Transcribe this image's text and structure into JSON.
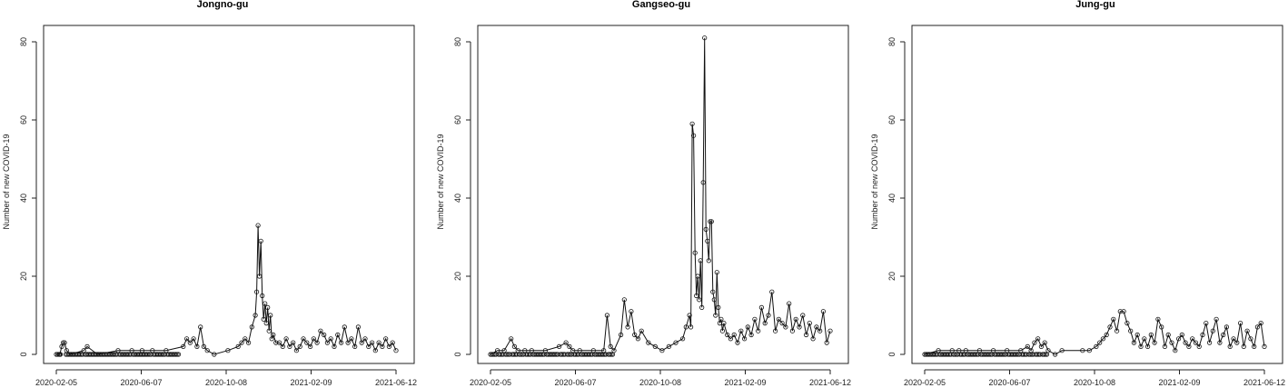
{
  "chart_data": [
    {
      "type": "line",
      "title": "Jongno-gu",
      "ylabel": "Number of new COVID-19",
      "ylim": [
        0,
        80
      ],
      "yticks": [
        0,
        20,
        40,
        60,
        80
      ],
      "xtick_labels": [
        "2020-02-05",
        "2020-06-07",
        "2020-10-08",
        "2021-02-09",
        "2021-06-12"
      ],
      "x_range_days": [
        0,
        495
      ],
      "points": [
        [
          0,
          0
        ],
        [
          5,
          0
        ],
        [
          8,
          2
        ],
        [
          10,
          3
        ],
        [
          12,
          3
        ],
        [
          15,
          1
        ],
        [
          20,
          0
        ],
        [
          40,
          1
        ],
        [
          45,
          2
        ],
        [
          60,
          0
        ],
        [
          90,
          1
        ],
        [
          110,
          1
        ],
        [
          125,
          1
        ],
        [
          140,
          1
        ],
        [
          160,
          1
        ],
        [
          185,
          2
        ],
        [
          190,
          4
        ],
        [
          195,
          3
        ],
        [
          200,
          4
        ],
        [
          205,
          2
        ],
        [
          210,
          7
        ],
        [
          215,
          2
        ],
        [
          220,
          1
        ],
        [
          230,
          0
        ],
        [
          250,
          1
        ],
        [
          265,
          2
        ],
        [
          270,
          3
        ],
        [
          275,
          4
        ],
        [
          280,
          3
        ],
        [
          285,
          7
        ],
        [
          290,
          10
        ],
        [
          292,
          16
        ],
        [
          294,
          33
        ],
        [
          296,
          20
        ],
        [
          298,
          29
        ],
        [
          300,
          15
        ],
        [
          302,
          9
        ],
        [
          304,
          13
        ],
        [
          306,
          8
        ],
        [
          308,
          12
        ],
        [
          310,
          6
        ],
        [
          312,
          10
        ],
        [
          314,
          4
        ],
        [
          316,
          5
        ],
        [
          320,
          3
        ],
        [
          325,
          3
        ],
        [
          330,
          2
        ],
        [
          335,
          4
        ],
        [
          340,
          2
        ],
        [
          345,
          3
        ],
        [
          350,
          1
        ],
        [
          355,
          2
        ],
        [
          360,
          4
        ],
        [
          365,
          3
        ],
        [
          370,
          2
        ],
        [
          375,
          4
        ],
        [
          380,
          3
        ],
        [
          385,
          6
        ],
        [
          390,
          5
        ],
        [
          395,
          3
        ],
        [
          400,
          4
        ],
        [
          405,
          2
        ],
        [
          410,
          5
        ],
        [
          415,
          3
        ],
        [
          420,
          7
        ],
        [
          425,
          3
        ],
        [
          430,
          4
        ],
        [
          435,
          2
        ],
        [
          440,
          7
        ],
        [
          445,
          3
        ],
        [
          450,
          4
        ],
        [
          455,
          2
        ],
        [
          460,
          3
        ],
        [
          465,
          1
        ],
        [
          470,
          3
        ],
        [
          475,
          2
        ],
        [
          480,
          4
        ],
        [
          485,
          2
        ],
        [
          490,
          3
        ],
        [
          495,
          1
        ]
      ]
    },
    {
      "type": "line",
      "title": "Gangseo-gu",
      "ylabel": "Number of new COVID-19",
      "ylim": [
        0,
        80
      ],
      "yticks": [
        0,
        20,
        40,
        60,
        80
      ],
      "xtick_labels": [
        "2020-02-05",
        "2020-06-07",
        "2020-10-08",
        "2021-02-09",
        "2021-06-12"
      ],
      "x_range_days": [
        0,
        495
      ],
      "points": [
        [
          0,
          0
        ],
        [
          10,
          1
        ],
        [
          20,
          1
        ],
        [
          30,
          4
        ],
        [
          35,
          2
        ],
        [
          40,
          1
        ],
        [
          50,
          1
        ],
        [
          60,
          1
        ],
        [
          80,
          1
        ],
        [
          100,
          2
        ],
        [
          110,
          3
        ],
        [
          115,
          2
        ],
        [
          120,
          1
        ],
        [
          130,
          1
        ],
        [
          150,
          1
        ],
        [
          165,
          1
        ],
        [
          170,
          10
        ],
        [
          175,
          2
        ],
        [
          180,
          1
        ],
        [
          190,
          5
        ],
        [
          195,
          14
        ],
        [
          200,
          7
        ],
        [
          205,
          11
        ],
        [
          210,
          5
        ],
        [
          215,
          4
        ],
        [
          220,
          6
        ],
        [
          230,
          3
        ],
        [
          240,
          2
        ],
        [
          250,
          1
        ],
        [
          260,
          2
        ],
        [
          270,
          3
        ],
        [
          280,
          4
        ],
        [
          285,
          7
        ],
        [
          290,
          10
        ],
        [
          292,
          7
        ],
        [
          294,
          59
        ],
        [
          296,
          56
        ],
        [
          298,
          26
        ],
        [
          300,
          15
        ],
        [
          302,
          20
        ],
        [
          304,
          14
        ],
        [
          306,
          24
        ],
        [
          308,
          12
        ],
        [
          310,
          44
        ],
        [
          312,
          81
        ],
        [
          314,
          32
        ],
        [
          316,
          29
        ],
        [
          318,
          24
        ],
        [
          320,
          34
        ],
        [
          322,
          34
        ],
        [
          324,
          16
        ],
        [
          326,
          14
        ],
        [
          328,
          10
        ],
        [
          330,
          21
        ],
        [
          332,
          12
        ],
        [
          334,
          8
        ],
        [
          336,
          9
        ],
        [
          338,
          6
        ],
        [
          340,
          8
        ],
        [
          345,
          5
        ],
        [
          350,
          4
        ],
        [
          355,
          5
        ],
        [
          360,
          3
        ],
        [
          365,
          6
        ],
        [
          370,
          4
        ],
        [
          375,
          7
        ],
        [
          380,
          5
        ],
        [
          385,
          9
        ],
        [
          390,
          6
        ],
        [
          395,
          12
        ],
        [
          400,
          8
        ],
        [
          405,
          10
        ],
        [
          410,
          16
        ],
        [
          415,
          6
        ],
        [
          420,
          9
        ],
        [
          425,
          8
        ],
        [
          430,
          7
        ],
        [
          435,
          13
        ],
        [
          440,
          6
        ],
        [
          445,
          9
        ],
        [
          450,
          7
        ],
        [
          455,
          10
        ],
        [
          460,
          5
        ],
        [
          465,
          8
        ],
        [
          470,
          4
        ],
        [
          475,
          7
        ],
        [
          480,
          6
        ],
        [
          485,
          11
        ],
        [
          490,
          3
        ],
        [
          495,
          6
        ]
      ]
    },
    {
      "type": "line",
      "title": "Jung-gu",
      "ylabel": "Number of new COVID-19",
      "ylim": [
        0,
        80
      ],
      "yticks": [
        0,
        20,
        40,
        60,
        80
      ],
      "xtick_labels": [
        "2020-02-05",
        "2020-06-07",
        "2020-10-08",
        "2021-02-09",
        "2021-06-12"
      ],
      "x_range_days": [
        0,
        495
      ],
      "points": [
        [
          0,
          0
        ],
        [
          20,
          1
        ],
        [
          40,
          1
        ],
        [
          50,
          1
        ],
        [
          60,
          1
        ],
        [
          80,
          1
        ],
        [
          100,
          1
        ],
        [
          120,
          1
        ],
        [
          140,
          1
        ],
        [
          150,
          2
        ],
        [
          155,
          1
        ],
        [
          160,
          3
        ],
        [
          165,
          4
        ],
        [
          170,
          2
        ],
        [
          175,
          3
        ],
        [
          180,
          1
        ],
        [
          190,
          0
        ],
        [
          200,
          1
        ],
        [
          230,
          1
        ],
        [
          240,
          1
        ],
        [
          250,
          2
        ],
        [
          255,
          3
        ],
        [
          260,
          4
        ],
        [
          265,
          5
        ],
        [
          270,
          7
        ],
        [
          275,
          9
        ],
        [
          280,
          6
        ],
        [
          285,
          11
        ],
        [
          290,
          11
        ],
        [
          295,
          8
        ],
        [
          300,
          6
        ],
        [
          305,
          3
        ],
        [
          310,
          5
        ],
        [
          315,
          2
        ],
        [
          320,
          4
        ],
        [
          325,
          2
        ],
        [
          330,
          5
        ],
        [
          335,
          3
        ],
        [
          340,
          9
        ],
        [
          345,
          7
        ],
        [
          350,
          2
        ],
        [
          355,
          5
        ],
        [
          360,
          3
        ],
        [
          365,
          1
        ],
        [
          370,
          4
        ],
        [
          375,
          5
        ],
        [
          380,
          3
        ],
        [
          385,
          2
        ],
        [
          390,
          4
        ],
        [
          395,
          3
        ],
        [
          400,
          2
        ],
        [
          405,
          5
        ],
        [
          410,
          8
        ],
        [
          415,
          3
        ],
        [
          420,
          6
        ],
        [
          425,
          9
        ],
        [
          430,
          3
        ],
        [
          435,
          5
        ],
        [
          440,
          7
        ],
        [
          445,
          2
        ],
        [
          450,
          4
        ],
        [
          455,
          3
        ],
        [
          460,
          8
        ],
        [
          465,
          2
        ],
        [
          470,
          6
        ],
        [
          475,
          4
        ],
        [
          480,
          2
        ],
        [
          485,
          7
        ],
        [
          490,
          8
        ],
        [
          495,
          2
        ]
      ]
    }
  ]
}
